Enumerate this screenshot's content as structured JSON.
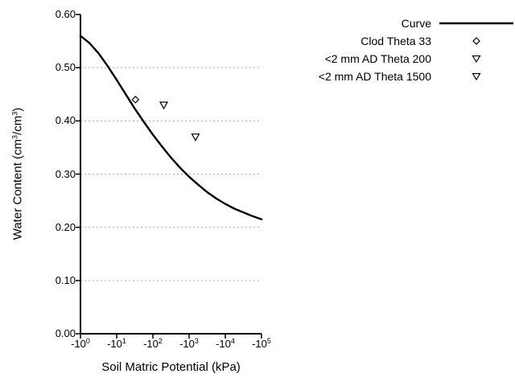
{
  "chart_data": {
    "type": "line",
    "title": "",
    "xlabel": "Soil Matric Potential (kPa)",
    "ylabel": "Water Content (cm³/cm³)",
    "ylabel_parts": [
      "Water Content (cm",
      "3",
      "/cm",
      "3",
      ")"
    ],
    "x_scale": "negative log10 (decades 0 to 5)",
    "xlim_log": [
      0,
      5
    ],
    "ylim": [
      0,
      0.6
    ],
    "grid": "horizontal dotted gridlines at 0.10 steps",
    "legend_position": "top-right outside plot, labels left of symbols",
    "x_ticks": [
      {
        "base": "-10",
        "exp": "0"
      },
      {
        "base": "-10",
        "exp": "1"
      },
      {
        "base": "-10",
        "exp": "2"
      },
      {
        "base": "-10",
        "exp": "3"
      },
      {
        "base": "-10",
        "exp": "4"
      },
      {
        "base": "-10",
        "exp": "5"
      }
    ],
    "y_ticks": [
      "0.00",
      "0.10",
      "0.20",
      "0.30",
      "0.40",
      "0.50",
      "0.60"
    ],
    "series": [
      {
        "name": "Curve",
        "type": "line",
        "x_log10_kpa": [
          0,
          0.25,
          0.5,
          0.75,
          1,
          1.25,
          1.5,
          1.75,
          2,
          2.25,
          2.5,
          2.75,
          3,
          3.25,
          3.5,
          3.75,
          4,
          4.25,
          4.5,
          4.75,
          5
        ],
        "values": [
          0.56,
          0.546,
          0.527,
          0.503,
          0.477,
          0.45,
          0.423,
          0.398,
          0.374,
          0.352,
          0.331,
          0.312,
          0.295,
          0.28,
          0.266,
          0.254,
          0.244,
          0.235,
          0.228,
          0.221,
          0.215
        ]
      },
      {
        "name": "Clod Theta 33",
        "type": "scatter",
        "marker": "diamond",
        "points": [
          {
            "kpa": -33,
            "theta": 0.44
          }
        ]
      },
      {
        "name": "<2 mm AD Theta 200",
        "type": "scatter",
        "marker": "triangle-down",
        "points": [
          {
            "kpa": -200,
            "theta": 0.43
          }
        ]
      },
      {
        "name": "<2 mm AD Theta 1500",
        "type": "scatter",
        "marker": "triangle-down",
        "points": [
          {
            "kpa": -1500,
            "theta": 0.37
          }
        ]
      }
    ]
  },
  "colors": {
    "axis": "#000000",
    "curve": "#000000",
    "grid": "#aaaaaa",
    "background": "#ffffff",
    "text": "#000000"
  }
}
